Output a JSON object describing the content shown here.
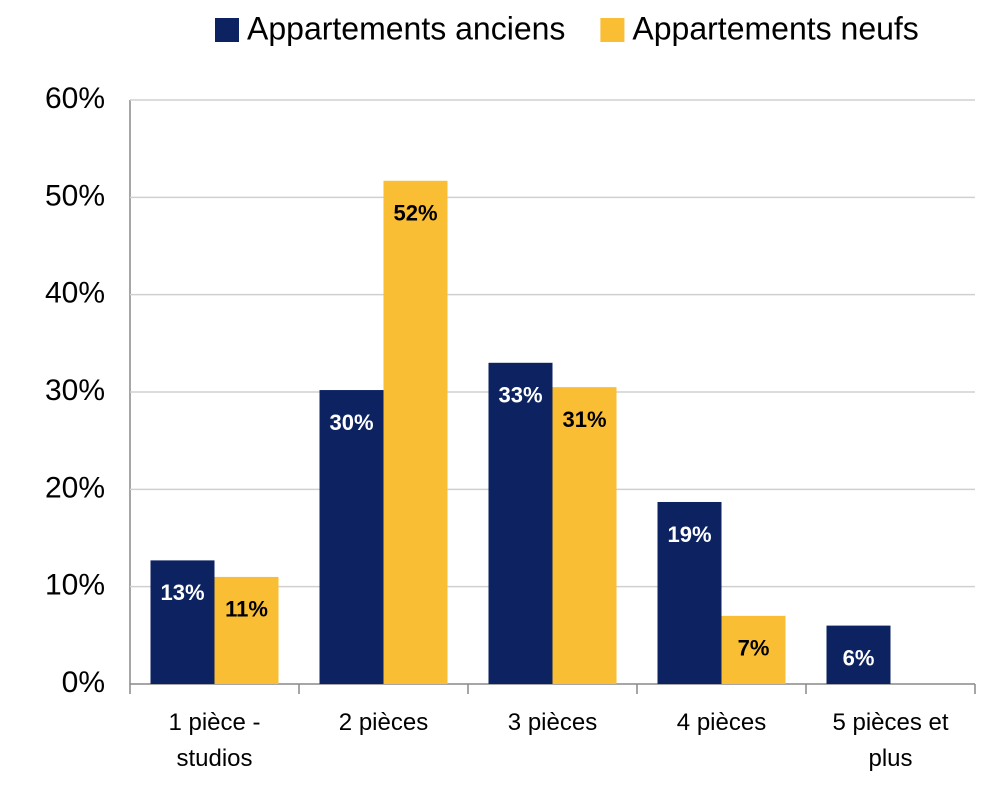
{
  "chart_data": {
    "type": "bar",
    "categories": [
      "1 pièce - studios",
      "2 pièces",
      "3 pièces",
      "4 pièces",
      "5 pièces et plus"
    ],
    "series": [
      {
        "name": "Appartements anciens",
        "color": "#0c2261",
        "values": [
          12.7,
          30.2,
          33.0,
          18.7,
          6.0
        ],
        "value_labels": [
          "13%",
          "30%",
          "33%",
          "19%",
          "6%"
        ]
      },
      {
        "name": "Appartements neufs",
        "color": "#f9be33",
        "values": [
          11.0,
          51.7,
          30.5,
          7.0,
          null
        ],
        "value_labels": [
          "11%",
          "52%",
          "31%",
          "7%",
          null
        ]
      }
    ],
    "ylim": [
      0,
      60
    ],
    "yticks": [
      {
        "value": 0,
        "label": "0%"
      },
      {
        "value": 10,
        "label": "10%"
      },
      {
        "value": 20,
        "label": "20%"
      },
      {
        "value": 30,
        "label": "30%"
      },
      {
        "value": 40,
        "label": "40%"
      },
      {
        "value": 50,
        "label": "50%"
      },
      {
        "value": 60,
        "label": "60%"
      }
    ],
    "grid": true
  }
}
